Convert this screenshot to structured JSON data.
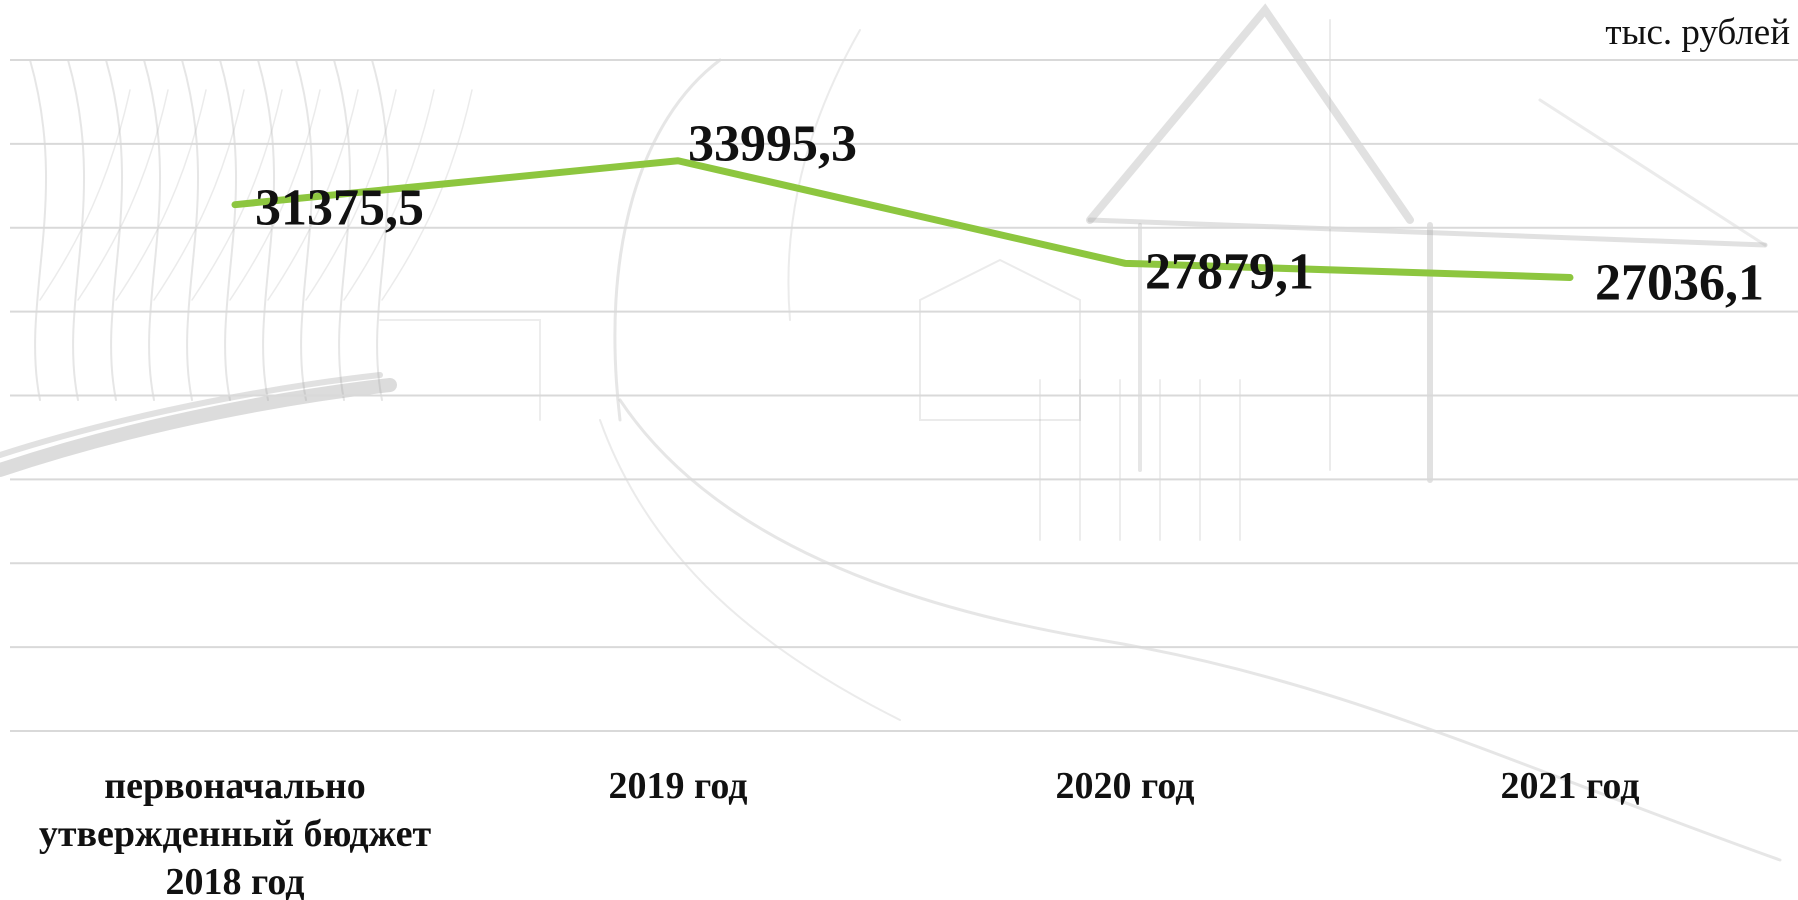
{
  "chart_data": {
    "type": "line",
    "unit_label": "тыс. рублей",
    "categories": [
      [
        "первоначально",
        "утвержденный бюджет",
        "2018 год"
      ],
      [
        "2019 год"
      ],
      [
        "2020 год"
      ],
      [
        "2021 год"
      ]
    ],
    "values": [
      31375.5,
      33995.3,
      27879.1,
      27036.1
    ],
    "data_labels": [
      "31375,5",
      "33995,3",
      "27879,1",
      "27036,1"
    ],
    "ylim": [
      0,
      40000
    ],
    "grid": true,
    "line_color": "#8dc63f",
    "gridline_color": "#d9d9d9",
    "background": "pencil-sketch-village-street"
  }
}
